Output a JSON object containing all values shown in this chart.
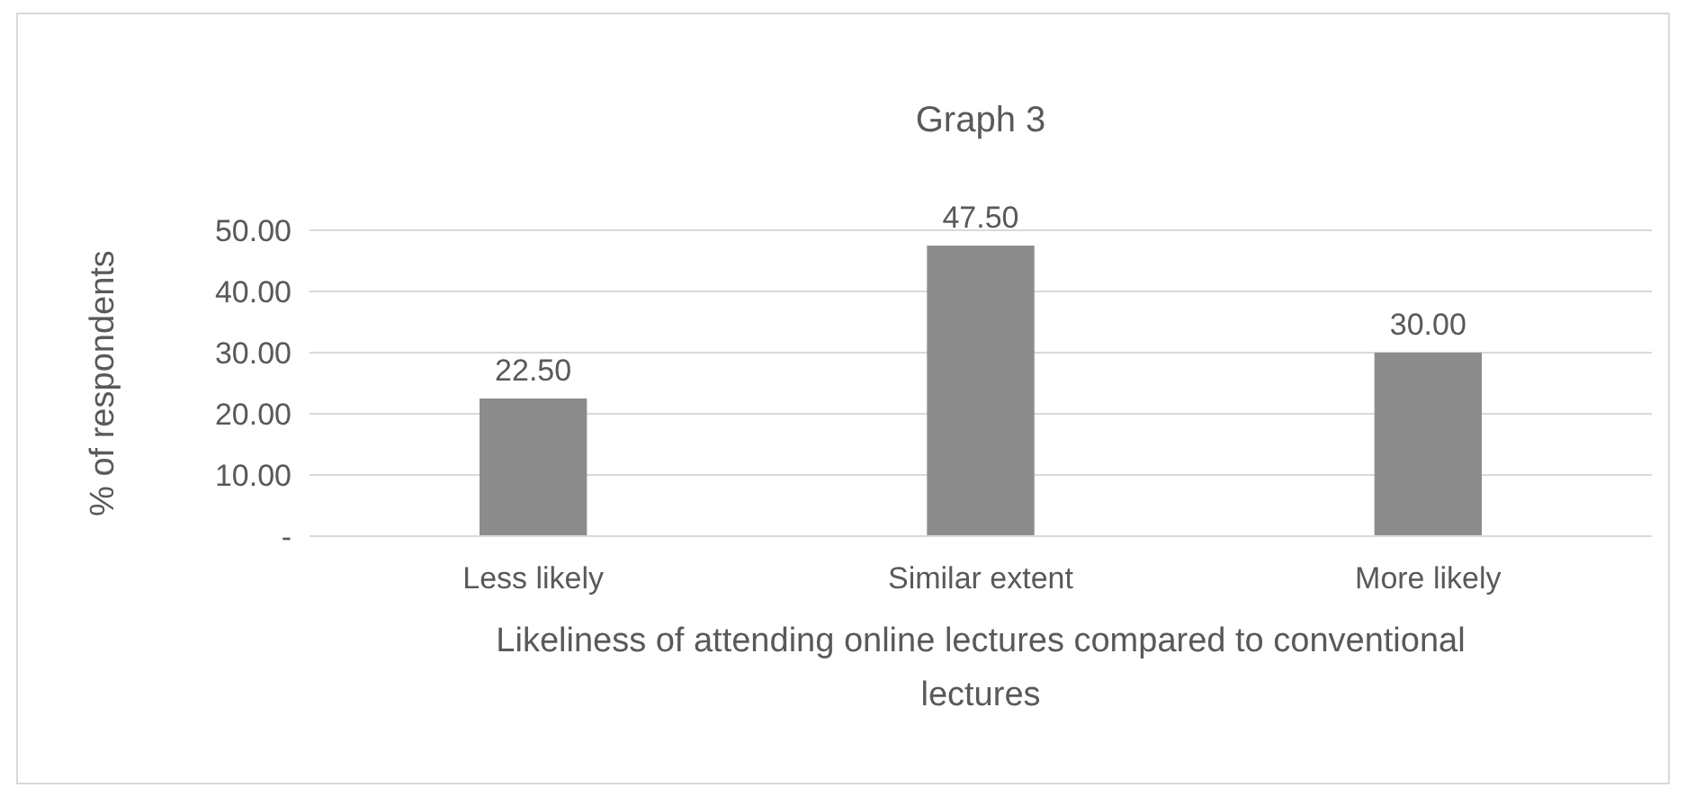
{
  "chart_data": {
    "type": "bar",
    "title": "Graph 3",
    "xlabel": "Likeliness of attending online lectures compared to conventional lectures",
    "ylabel": "% of respondents",
    "categories": [
      "Less likely",
      "Similar extent",
      "More likely"
    ],
    "values": [
      22.5,
      47.5,
      30
    ],
    "color": "#8c8c8c",
    "value_labels": [
      "22.50",
      "47.50",
      "30.00"
    ],
    "ylim": [
      0,
      50
    ],
    "yticks": [
      {
        "value": 0,
        "label": "-"
      },
      {
        "value": 10,
        "label": "10.00"
      },
      {
        "value": 20,
        "label": "20.00"
      },
      {
        "value": 30,
        "label": "30.00"
      },
      {
        "value": 40,
        "label": "40.00"
      },
      {
        "value": 50,
        "label": "50.00"
      }
    ],
    "grid": "y"
  }
}
